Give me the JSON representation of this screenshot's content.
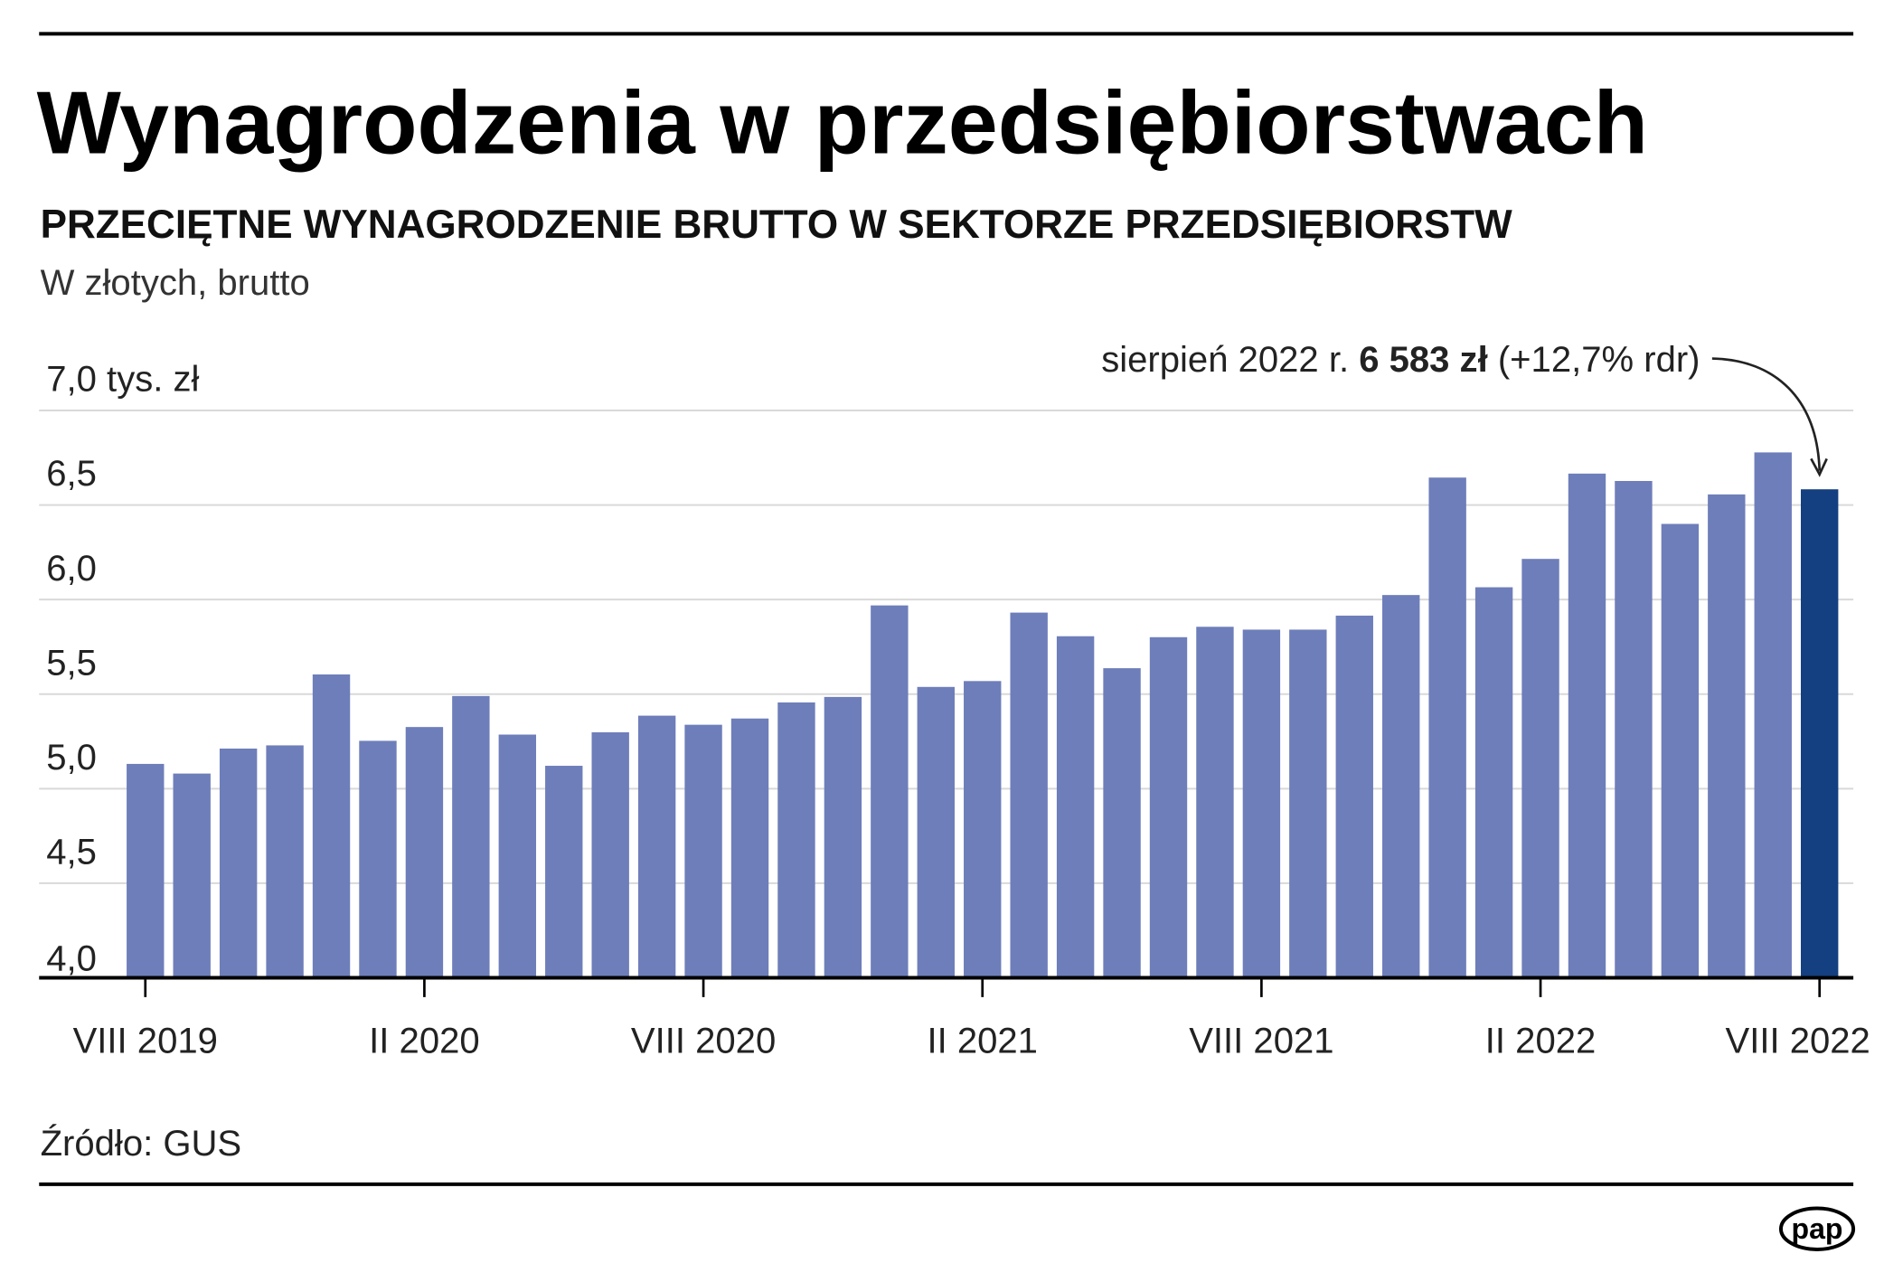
{
  "header": {
    "title": "Wynagrodzenia w przedsiębiorstwach",
    "subtitle": "PRZECIĘTNE WYNAGRODZENIE BRUTTO W SEKTORZE PRZEDSIĘBIORSTW",
    "unit_note": "W złotych, brutto"
  },
  "annotation": {
    "prefix": "sierpień 2022 r. ",
    "value": "6 583 zł",
    "suffix": " (+12,7% rdr)"
  },
  "footer": {
    "source": "Źródło: GUS",
    "logo": "pap"
  },
  "colors": {
    "bar": "#6e7eba",
    "highlight": "#143f80",
    "grid": "#d9d9d9",
    "axis": "#000000"
  },
  "chart_data": {
    "type": "bar",
    "title": "Wynagrodzenia w przedsiębiorstwach",
    "ylabel": "tys. zł",
    "ylim": [
      4.0,
      7.0
    ],
    "yticks": [
      {
        "value": 7.0,
        "label": "7,0 tys. zł"
      },
      {
        "value": 6.5,
        "label": "6,5"
      },
      {
        "value": 6.0,
        "label": "6,0"
      },
      {
        "value": 5.5,
        "label": "5,5"
      },
      {
        "value": 5.0,
        "label": "5,0"
      },
      {
        "value": 4.5,
        "label": "4,5"
      },
      {
        "value": 4.0,
        "label": "4,0"
      }
    ],
    "xticks": [
      {
        "index": 0,
        "label": "VIII 2019"
      },
      {
        "index": 6,
        "label": "II 2020"
      },
      {
        "index": 12,
        "label": "VIII 2020"
      },
      {
        "index": 18,
        "label": "II 2021"
      },
      {
        "index": 24,
        "label": "VIII 2021"
      },
      {
        "index": 30,
        "label": "II 2022"
      },
      {
        "index": 36,
        "label": "VIII 2022"
      }
    ],
    "categories": [
      "VIII 2019",
      "IX 2019",
      "X 2019",
      "XI 2019",
      "XII 2019",
      "I 2020",
      "II 2020",
      "III 2020",
      "IV 2020",
      "V 2020",
      "VI 2020",
      "VII 2020",
      "VIII 2020",
      "IX 2020",
      "X 2020",
      "XI 2020",
      "XII 2020",
      "I 2021",
      "II 2021",
      "III 2021",
      "IV 2021",
      "V 2021",
      "VI 2021",
      "VII 2021",
      "VIII 2021",
      "IX 2021",
      "X 2021",
      "XI 2021",
      "XII 2021",
      "I 2022",
      "II 2022",
      "III 2022",
      "IV 2022",
      "V 2022",
      "VI 2022",
      "VII 2022",
      "VIII 2022"
    ],
    "values": [
      5.131,
      5.08,
      5.212,
      5.229,
      5.604,
      5.253,
      5.326,
      5.49,
      5.286,
      5.121,
      5.298,
      5.386,
      5.338,
      5.371,
      5.456,
      5.485,
      5.969,
      5.538,
      5.569,
      5.931,
      5.806,
      5.637,
      5.801,
      5.856,
      5.841,
      5.841,
      5.915,
      6.024,
      6.645,
      6.065,
      6.215,
      6.666,
      6.627,
      6.4,
      6.556,
      6.778,
      6.583
    ],
    "highlight_index": 36,
    "grid": true
  }
}
